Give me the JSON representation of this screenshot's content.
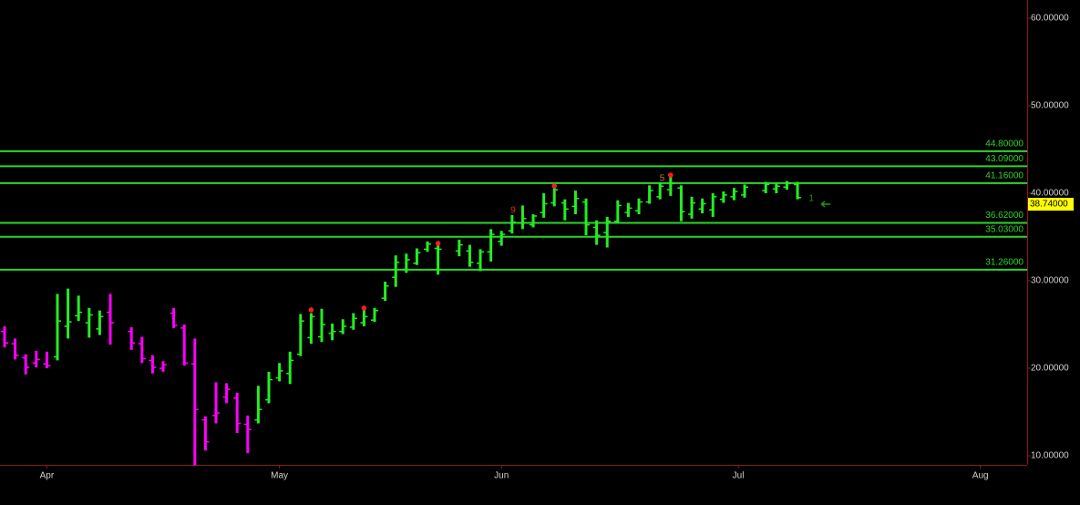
{
  "chart_data": {
    "type": "ohlc",
    "x": [
      0,
      1,
      2,
      3,
      4,
      5,
      6,
      7,
      8,
      9,
      10,
      12,
      13,
      14,
      15,
      16,
      17,
      18,
      19,
      20,
      21,
      22,
      23,
      24,
      25,
      26,
      27,
      28,
      29,
      30,
      31,
      32,
      33,
      34,
      35,
      36,
      37,
      38,
      39,
      40,
      41,
      43,
      44,
      45,
      46,
      47,
      48,
      49,
      50,
      51,
      52,
      53,
      54,
      55,
      56,
      57,
      58,
      59,
      60,
      61,
      62,
      63,
      64,
      65,
      66,
      67,
      68,
      69,
      70,
      72,
      73,
      74,
      75
    ],
    "ohlc": [
      [
        24.2,
        24.8,
        22.4,
        22.9
      ],
      [
        22.8,
        23.4,
        21.0,
        21.5
      ],
      [
        21.2,
        21.6,
        19.3,
        20.1
      ],
      [
        20.6,
        22.0,
        20.1,
        21.0
      ],
      [
        20.5,
        21.9,
        20.0,
        20.3
      ],
      [
        21.3,
        28.5,
        20.9,
        25.4
      ],
      [
        24.8,
        29.1,
        23.4,
        25.3
      ],
      [
        26.0,
        28.3,
        25.4,
        26.4
      ],
      [
        25.2,
        26.9,
        23.5,
        26.1
      ],
      [
        24.5,
        26.6,
        23.8,
        25.9
      ],
      [
        26.4,
        28.5,
        22.7,
        25.2
      ],
      [
        24.2,
        24.7,
        22.1,
        22.9
      ],
      [
        22.8,
        23.6,
        20.6,
        21.1
      ],
      [
        20.9,
        21.5,
        19.4,
        20.1
      ],
      [
        20.0,
        20.8,
        19.6,
        20.4
      ],
      [
        26.3,
        26.9,
        24.6,
        24.9
      ],
      [
        24.6,
        25.0,
        20.3,
        20.6
      ],
      [
        20.5,
        23.4,
        8.9,
        15.3
      ],
      [
        14.1,
        14.5,
        10.6,
        11.6
      ],
      [
        14.6,
        18.4,
        13.7,
        14.9
      ],
      [
        16.7,
        18.3,
        16.0,
        17.6
      ],
      [
        16.6,
        17.2,
        12.6,
        13.7
      ],
      [
        13.6,
        14.6,
        10.3,
        13.0
      ],
      [
        14.1,
        18.0,
        13.7,
        15.3
      ],
      [
        16.4,
        19.6,
        16.0,
        18.7
      ],
      [
        18.9,
        20.6,
        18.5,
        19.7
      ],
      [
        19.4,
        21.9,
        18.2,
        20.9
      ],
      [
        21.6,
        26.2,
        21.4,
        25.4
      ],
      [
        23.5,
        26.3,
        22.8,
        25.9
      ],
      [
        23.6,
        26.8,
        23.0,
        25.0
      ],
      [
        24.0,
        25.1,
        23.2,
        24.2
      ],
      [
        24.2,
        25.6,
        23.9,
        24.8
      ],
      [
        24.7,
        26.3,
        24.4,
        25.7
      ],
      [
        25.2,
        26.7,
        24.8,
        25.9
      ],
      [
        25.5,
        26.9,
        25.3,
        26.6
      ],
      [
        28.0,
        29.9,
        27.7,
        29.4
      ],
      [
        30.4,
        32.9,
        29.3,
        32.1
      ],
      [
        31.3,
        33.1,
        30.9,
        32.4
      ],
      [
        32.0,
        33.7,
        31.8,
        33.2
      ],
      [
        33.6,
        34.5,
        33.3,
        34.2
      ],
      [
        33.7,
        34.2,
        30.7,
        33.6
      ],
      [
        33.4,
        34.7,
        32.8,
        34.1
      ],
      [
        33.4,
        34.1,
        31.6,
        32.1
      ],
      [
        32.0,
        33.6,
        31.1,
        33.3
      ],
      [
        33.3,
        35.9,
        32.2,
        35.3
      ],
      [
        34.5,
        35.7,
        34.0,
        35.3
      ],
      [
        35.7,
        37.5,
        35.4,
        36.7
      ],
      [
        36.6,
        38.6,
        35.9,
        37.1
      ],
      [
        36.4,
        37.6,
        36.1,
        37.4
      ],
      [
        37.8,
        40.0,
        37.2,
        38.8
      ],
      [
        38.9,
        40.8,
        38.5,
        40.4
      ],
      [
        38.9,
        39.3,
        36.9,
        38.2
      ],
      [
        38.5,
        40.3,
        37.6,
        39.4
      ],
      [
        39.0,
        39.4,
        35.2,
        36.4
      ],
      [
        36.1,
        36.9,
        34.1,
        35.2
      ],
      [
        35.5,
        37.3,
        33.8,
        36.8
      ],
      [
        36.8,
        39.2,
        36.6,
        38.6
      ],
      [
        37.8,
        38.9,
        37.3,
        38.3
      ],
      [
        38.0,
        39.4,
        37.6,
        39.0
      ],
      [
        39.0,
        40.9,
        38.8,
        40.3
      ],
      [
        39.6,
        41.2,
        39.3,
        40.8
      ],
      [
        40.4,
        41.9,
        39.7,
        41.1
      ],
      [
        40.6,
        40.9,
        36.8,
        37.9
      ],
      [
        37.6,
        39.6,
        37.1,
        38.9
      ],
      [
        38.2,
        39.4,
        37.7,
        38.8
      ],
      [
        38.1,
        40.0,
        37.3,
        39.6
      ],
      [
        39.3,
        40.2,
        38.9,
        39.8
      ],
      [
        39.6,
        40.6,
        39.2,
        40.2
      ],
      [
        39.8,
        41.0,
        39.5,
        40.7
      ],
      [
        40.3,
        41.3,
        40.0,
        41.0
      ],
      [
        40.5,
        41.1,
        40.0,
        40.8
      ],
      [
        40.7,
        41.4,
        40.4,
        41.1
      ],
      [
        41.0,
        41.3,
        39.3,
        39.5
      ]
    ],
    "bar_colors": [
      "#ff00ff",
      "#ff00ff",
      "#ff00ff",
      "#ff00ff",
      "#ff00ff",
      "#22ee22",
      "#22ee22",
      "#22ee22",
      "#22ee22",
      "#22ee22",
      "#ff00ff",
      "#ff00ff",
      "#ff00ff",
      "#ff00ff",
      "#ff00ff",
      "#ff00ff",
      "#ff00ff",
      "#ff00ff",
      "#ff00ff",
      "#ff00ff",
      "#ff00ff",
      "#ff00ff",
      "#ff00ff",
      "#22ee22",
      "#22ee22",
      "#22ee22",
      "#22ee22",
      "#22ee22",
      "#22ee22",
      "#22ee22",
      "#22ee22",
      "#22ee22",
      "#22ee22",
      "#22ee22",
      "#22ee22",
      "#22ee22",
      "#22ee22",
      "#22ee22",
      "#22ee22",
      "#22ee22",
      "#22ee22",
      "#22ee22",
      "#22ee22",
      "#22ee22",
      "#22ee22",
      "#22ee22",
      "#22ee22",
      "#22ee22",
      "#22ee22",
      "#22ee22",
      "#22ee22",
      "#22ee22",
      "#22ee22",
      "#22ee22",
      "#22ee22",
      "#22ee22",
      "#22ee22",
      "#22ee22",
      "#22ee22",
      "#22ee22",
      "#22ee22",
      "#22ee22",
      "#22ee22",
      "#22ee22",
      "#22ee22",
      "#22ee22",
      "#22ee22",
      "#22ee22",
      "#22ee22",
      "#22ee22",
      "#22ee22",
      "#22ee22",
      "#22ee22"
    ],
    "xlim": [
      -0.43,
      96.72
    ],
    "xticks": [
      {
        "value": 4,
        "label": "Apr"
      },
      {
        "value": 26,
        "label": "May"
      },
      {
        "value": 47,
        "label": "Jun"
      },
      {
        "value": 69.4,
        "label": "Jul"
      },
      {
        "value": 92.3,
        "label": "Aug"
      }
    ],
    "ylim": [
      8.96,
      62.08
    ],
    "yticks": [
      {
        "value": 10,
        "label": "10.00000"
      },
      {
        "value": 20,
        "label": "20.00000"
      },
      {
        "value": 30,
        "label": "30.00000"
      },
      {
        "value": 40,
        "label": "40.00000"
      },
      {
        "value": 50,
        "label": "50.00000"
      },
      {
        "value": 60,
        "label": "60.00000"
      }
    ],
    "levels": [
      {
        "value": 44.8,
        "label": "44.80000"
      },
      {
        "value": 43.09,
        "label": "43.09000"
      },
      {
        "value": 41.16,
        "label": "41.16000"
      },
      {
        "value": 36.62,
        "label": "36.62000"
      },
      {
        "value": 35.03,
        "label": "35.03000"
      },
      {
        "value": 31.26,
        "label": "31.26000"
      }
    ],
    "level_color": "#2bd62b",
    "last_price": {
      "value": 38.74,
      "label": "38.74000"
    },
    "markers": {
      "color": "#ff1a1a",
      "x": [
        29,
        34,
        41,
        52,
        63
      ],
      "y": [
        26.67,
        26.88,
        34.27,
        40.83,
        42.08
      ]
    },
    "annotations": [
      {
        "text": "9",
        "x": 48.1,
        "y": 38.02,
        "color": "#e0302a"
      },
      {
        "text": "5",
        "x": 62.2,
        "y": 41.67,
        "color": "#c07a30"
      },
      {
        "text": "1",
        "x": 76.3,
        "y": 39.38,
        "color": "#1a9a1a"
      }
    ]
  }
}
